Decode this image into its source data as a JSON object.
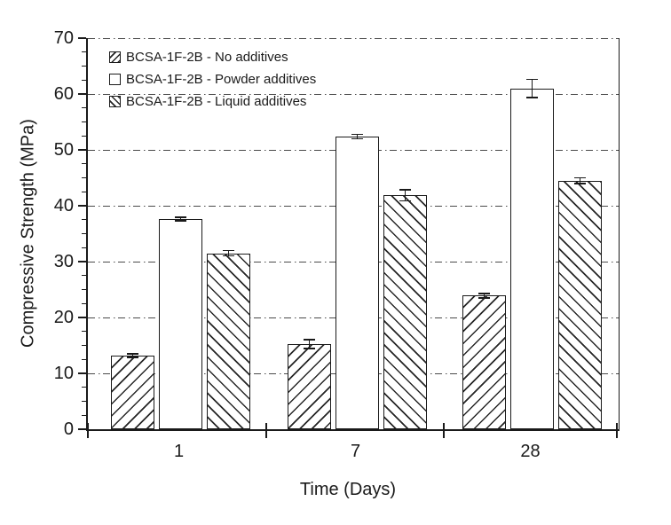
{
  "chart_data": {
    "type": "bar",
    "title": "",
    "xlabel": "Time (Days)",
    "ylabel": "Compressive Strength (MPa)",
    "categories": [
      "1",
      "7",
      "28"
    ],
    "series": [
      {
        "name": "BCSA-1F-2B - No additives",
        "hatch": "forward-slash",
        "values": [
          13.2,
          15.2,
          23.9
        ],
        "errors": [
          0.3,
          0.8,
          0.4
        ]
      },
      {
        "name": "BCSA-1F-2B - Powder additives",
        "hatch": "none",
        "values": [
          37.6,
          52.4,
          61.0
        ],
        "errors": [
          0.3,
          0.4,
          1.6
        ]
      },
      {
        "name": "BCSA-1F-2B - Liquid additives",
        "hatch": "back-slash",
        "values": [
          31.5,
          41.9,
          44.5
        ],
        "errors": [
          0.5,
          1.0,
          0.5
        ]
      }
    ],
    "ylim": [
      0,
      70
    ],
    "y_major_ticks": [
      0,
      10,
      20,
      30,
      40,
      50,
      60,
      70
    ],
    "y_minor_step": 2.5,
    "grid": "horizontal-dashed",
    "legend_position": "top-left-inside",
    "error_bars": true
  },
  "colors": {
    "ink": "#1a1a1a",
    "grid": "#4a4a4a",
    "background": "#ffffff"
  }
}
